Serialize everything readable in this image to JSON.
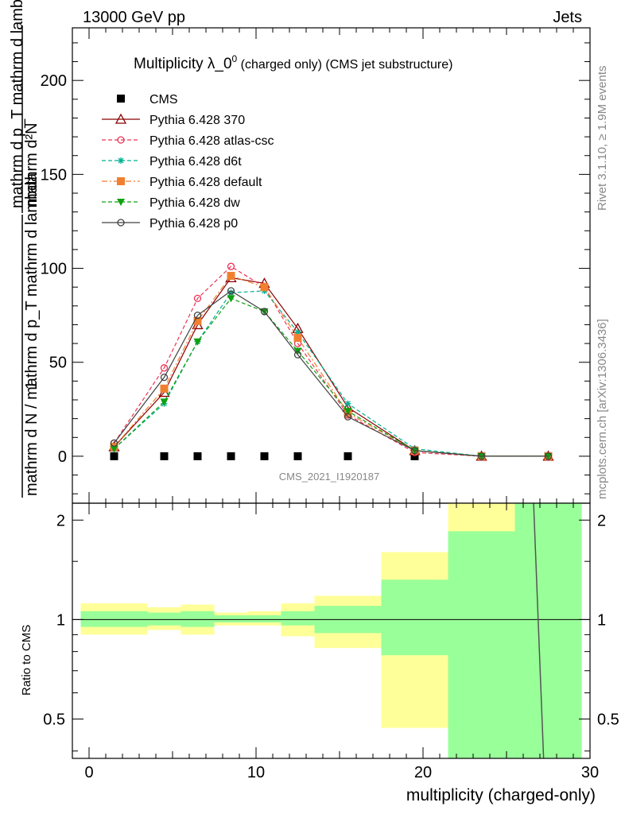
{
  "header": {
    "left": "13000 GeV pp",
    "right": "Jets"
  },
  "side_labels": {
    "rivet": "Rivet 3.1.10, ≥ 1.9M events",
    "mcplots": "mcplots.cern.ch [arXiv:1306.3436]"
  },
  "watermark": "CMS_2021_I1920187",
  "title": {
    "main": "Multiplicity λ_0",
    "sup": "0",
    "sub": " (charged only) (CMS jet substructure)"
  },
  "ylabel_top": {
    "numerator": "mathrm d²N",
    "denominator": "mathrm d p_T mathrm d lambda",
    "prefactor_num": "1",
    "prefactor_den": "mathrm d N / mathrm d p_T mathrm d lambda"
  },
  "ylabel_ratio": "Ratio to CMS",
  "xlabel": "multiplicity (charged-only)",
  "legend": [
    {
      "label": "CMS",
      "color": "#000000",
      "marker": "filled-square",
      "dash": "none"
    },
    {
      "label": "Pythia 6.428 370",
      "color": "#8b0000",
      "marker": "open-triangle",
      "dash": "solid"
    },
    {
      "label": "Pythia 6.428 atlas-csc",
      "color": "#ee3355",
      "marker": "open-circle",
      "dash": "dashed"
    },
    {
      "label": "Pythia 6.428 d6t",
      "color": "#00b090",
      "marker": "star",
      "dash": "dashed"
    },
    {
      "label": "Pythia 6.428 default",
      "color": "#f08030",
      "marker": "filled-square",
      "dash": "dashdot"
    },
    {
      "label": "Pythia 6.428 dw",
      "color": "#10a010",
      "marker": "filled-triangle-down",
      "dash": "dashed"
    },
    {
      "label": "Pythia 6.428 p0",
      "color": "#404040",
      "marker": "open-circle",
      "dash": "solid"
    }
  ],
  "chart_data": [
    {
      "type": "scatter",
      "panel": "main",
      "xlim": [
        -1,
        30
      ],
      "ylim": [
        -25,
        228
      ],
      "yticks": [
        0,
        50,
        100,
        150,
        200
      ],
      "x": [
        1.5,
        4.5,
        6.5,
        8.5,
        10.5,
        12.5,
        15.5,
        19.5,
        23.5,
        27.5
      ],
      "series": [
        {
          "name": "CMS",
          "values": [
            0,
            0,
            0,
            0,
            0,
            0,
            0,
            0,
            0,
            0
          ]
        },
        {
          "name": "Pythia 6.428 370",
          "values": [
            5,
            34,
            70,
            95,
            92,
            68,
            26,
            3,
            0,
            0
          ]
        },
        {
          "name": "Pythia 6.428 atlas-csc",
          "values": [
            7,
            47,
            84,
            101,
            90,
            60,
            22,
            2,
            0,
            0
          ]
        },
        {
          "name": "Pythia 6.428 d6t",
          "values": [
            4,
            28,
            61,
            87,
            88,
            66,
            28,
            4,
            0,
            0
          ]
        },
        {
          "name": "Pythia 6.428 default",
          "values": [
            5,
            36,
            72,
            96,
            90,
            63,
            23,
            3,
            0,
            0
          ]
        },
        {
          "name": "Pythia 6.428 dw",
          "values": [
            4,
            29,
            61,
            84,
            77,
            56,
            24,
            3,
            0,
            0
          ]
        },
        {
          "name": "Pythia 6.428 p0",
          "values": [
            7,
            42,
            75,
            88,
            77,
            54,
            21,
            3,
            0,
            0
          ]
        }
      ]
    },
    {
      "type": "area",
      "panel": "ratio",
      "xlim": [
        -1,
        30
      ],
      "ylim": [
        0.38,
        2.25
      ],
      "yticks": [
        0.5,
        1,
        2
      ],
      "xticks": [
        0,
        10,
        20,
        30
      ],
      "bins": [
        [
          -0.5,
          3.5
        ],
        [
          3.5,
          5.5
        ],
        [
          5.5,
          7.5
        ],
        [
          7.5,
          9.5
        ],
        [
          9.5,
          11.5
        ],
        [
          11.5,
          13.5
        ],
        [
          13.5,
          17.5
        ],
        [
          17.5,
          21.5
        ],
        [
          21.5,
          25.5
        ],
        [
          25.5,
          29.5
        ]
      ],
      "stat_band": [
        [
          0.95,
          1.06
        ],
        [
          0.96,
          1.05
        ],
        [
          0.95,
          1.06
        ],
        [
          0.98,
          1.03
        ],
        [
          0.98,
          1.03
        ],
        [
          0.96,
          1.06
        ],
        [
          0.91,
          1.1
        ],
        [
          0.78,
          1.32
        ],
        [
          0.3,
          1.85
        ],
        [
          0.3,
          2.4
        ]
      ],
      "total_band": [
        [
          0.9,
          1.12
        ],
        [
          0.93,
          1.09
        ],
        [
          0.9,
          1.11
        ],
        [
          0.96,
          1.05
        ],
        [
          0.96,
          1.06
        ],
        [
          0.89,
          1.12
        ],
        [
          0.82,
          1.18
        ],
        [
          0.47,
          1.6
        ],
        [
          0.3,
          2.4
        ],
        [
          0.3,
          2.4
        ]
      ],
      "line": {
        "x": [
          26.6,
          27.3
        ],
        "y": [
          2.4,
          0.3
        ]
      }
    }
  ],
  "colors": {
    "stat_band": "#99ff99",
    "total_band": "#ffff99"
  }
}
